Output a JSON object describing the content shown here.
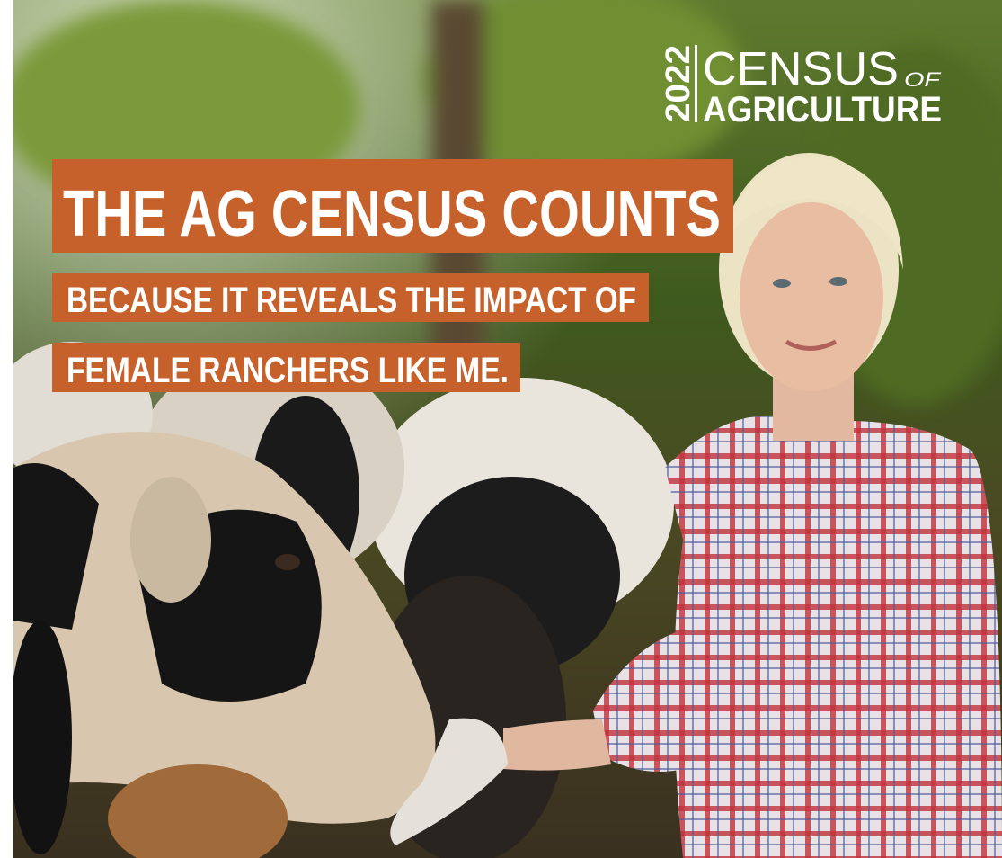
{
  "logo": {
    "year": "2022",
    "word1": "CENSUS",
    "of": "OF",
    "word2": "AGRICULTURE"
  },
  "headline": "THE AG CENSUS COUNTS",
  "subline": [
    "BECAUSE IT REVEALS THE IMPACT OF",
    "FEMALE RANCHERS LIKE ME."
  ]
}
